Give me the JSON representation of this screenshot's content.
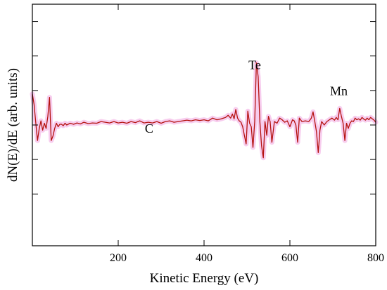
{
  "chart_data": {
    "type": "line",
    "title": "",
    "xlabel": "Kinetic Energy (eV)",
    "ylabel": "dN(E)/dE (arb. units)",
    "xlim": [
      0,
      800
    ],
    "ylim": [
      -3.5,
      3.5
    ],
    "x_ticks": [
      200,
      400,
      600,
      800
    ],
    "x_tick_labels": [
      "200",
      "400",
      "600",
      "800"
    ],
    "y_ticks_unlabeled": [
      -2,
      -1,
      0,
      1,
      2,
      3
    ],
    "y_tick_labels_shown": false,
    "grid": false,
    "legend": "none",
    "line_color": "#b5120f",
    "highlight_color": "#f6c8ec",
    "annotations": [
      {
        "text": "Te",
        "x": 518,
        "y": 1.62
      },
      {
        "text": "Mn",
        "x": 714,
        "y": 0.86
      },
      {
        "text": "C",
        "x": 272,
        "y": -0.22
      }
    ],
    "series": [
      {
        "x": [
          0,
          4,
          8,
          12,
          16,
          20,
          24,
          28,
          32,
          36,
          40,
          44,
          48,
          52,
          56,
          60,
          64,
          68,
          72,
          76,
          80,
          88,
          96,
          104,
          112,
          120,
          130,
          140,
          150,
          160,
          170,
          180,
          190,
          200,
          210,
          220,
          230,
          240,
          250,
          260,
          270,
          280,
          290,
          300,
          310,
          320,
          330,
          340,
          350,
          360,
          370,
          380,
          390,
          400,
          410,
          420,
          430,
          440,
          450,
          456,
          462,
          466,
          470,
          474,
          478,
          482,
          486,
          490,
          494,
          498,
          502,
          506,
          510,
          514,
          518,
          522,
          526,
          530,
          534,
          538,
          542,
          546,
          550,
          554,
          558,
          564,
          570,
          576,
          582,
          588,
          594,
          600,
          606,
          610,
          614,
          618,
          622,
          628,
          636,
          644,
          650,
          654,
          658,
          662,
          666,
          670,
          674,
          680,
          686,
          692,
          698,
          704,
          708,
          712,
          716,
          720,
          724,
          728,
          732,
          736,
          740,
          744,
          748,
          752,
          756,
          760,
          764,
          768,
          772,
          776,
          780,
          784,
          788,
          792,
          796,
          800
        ],
        "y": [
          0.9,
          0.6,
          0.05,
          -0.45,
          -0.1,
          0.12,
          -0.15,
          0.05,
          -0.1,
          0.25,
          0.8,
          -0.45,
          -0.32,
          -0.1,
          0.05,
          -0.05,
          0.02,
          0.02,
          -0.02,
          0.05,
          0.0,
          0.05,
          0.02,
          0.06,
          0.03,
          0.08,
          0.04,
          0.06,
          0.05,
          0.1,
          0.08,
          0.06,
          0.1,
          0.06,
          0.08,
          0.05,
          0.1,
          0.07,
          0.12,
          0.06,
          0.08,
          0.06,
          0.1,
          0.05,
          0.1,
          0.12,
          0.08,
          0.1,
          0.12,
          0.14,
          0.12,
          0.15,
          0.13,
          0.15,
          0.12,
          0.2,
          0.15,
          0.18,
          0.22,
          0.28,
          0.2,
          0.32,
          0.18,
          0.45,
          0.2,
          0.12,
          0.08,
          -0.05,
          -0.3,
          -0.55,
          0.4,
          0.05,
          -0.05,
          -0.65,
          0.1,
          1.8,
          1.4,
          0.1,
          -0.6,
          -0.95,
          0.1,
          -0.3,
          0.25,
          0.1,
          -0.5,
          0.1,
          0.05,
          0.2,
          0.15,
          0.08,
          0.12,
          -0.05,
          0.15,
          0.12,
          0.0,
          -0.5,
          0.2,
          0.1,
          0.12,
          0.1,
          0.2,
          0.38,
          0.1,
          -0.2,
          -0.8,
          -0.15,
          0.1,
          0.0,
          0.1,
          0.15,
          0.2,
          0.14,
          0.22,
          0.15,
          0.48,
          0.25,
          0.05,
          -0.45,
          0.05,
          -0.1,
          0.05,
          0.12,
          0.1,
          0.2,
          0.15,
          0.18,
          0.14,
          0.22,
          0.17,
          0.14,
          0.2,
          0.15,
          0.22,
          0.18,
          0.14,
          0.08
        ]
      }
    ]
  }
}
